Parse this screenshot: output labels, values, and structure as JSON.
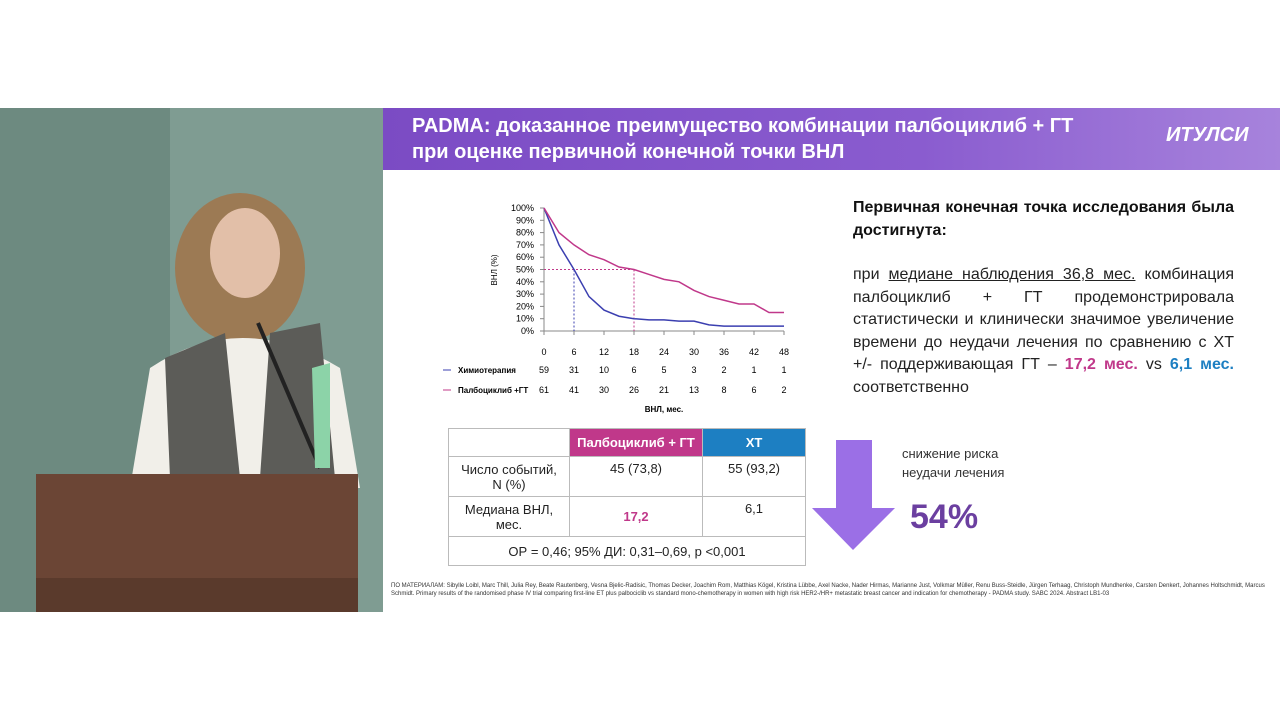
{
  "slide": {
    "title_lines": [
      "PADMA: доказанное преимущество комбинации палбоциклиб + ГТ",
      "при оценке первичной конечной точки ВНЛ"
    ],
    "logo": "ИТУЛСИ"
  },
  "chart_data": {
    "type": "line",
    "y_label": "ВНЛ (%)",
    "x_label": "ВНЛ, мес.",
    "x": [
      0,
      3,
      6,
      9,
      12,
      15,
      18,
      21,
      24,
      27,
      30,
      33,
      36,
      39,
      42,
      45,
      48
    ],
    "series": [
      {
        "name": "Химиотерапия",
        "color": "#3b3fb0",
        "values": [
          100,
          70,
          50,
          28,
          17,
          12,
          10,
          9,
          9,
          8,
          8,
          5,
          4,
          4,
          4,
          4,
          4
        ]
      },
      {
        "name": "Палбоциклиб +ГТ",
        "color": "#c0388a",
        "values": [
          100,
          80,
          70,
          62,
          58,
          52,
          50,
          46,
          42,
          40,
          33,
          28,
          25,
          22,
          22,
          15,
          15
        ]
      }
    ],
    "xlim": [
      0,
      48
    ],
    "ylim": [
      0,
      100
    ],
    "xticks": [
      0,
      6,
      12,
      18,
      24,
      30,
      36,
      42,
      48
    ],
    "yticks": [
      {
        "value": 0,
        "label": "0%"
      },
      {
        "value": 10,
        "label": "10%"
      },
      {
        "value": 20,
        "label": "20%"
      },
      {
        "value": 30,
        "label": "30%"
      },
      {
        "value": 40,
        "label": "40%"
      },
      {
        "value": 50,
        "label": "50%"
      },
      {
        "value": 60,
        "label": "60%"
      },
      {
        "value": 70,
        "label": "70%"
      },
      {
        "value": 80,
        "label": "80%"
      },
      {
        "value": 90,
        "label": "90%"
      },
      {
        "value": 100,
        "label": "100%"
      }
    ],
    "at_risk": [
      [
        59,
        31,
        10,
        6,
        5,
        3,
        2,
        1,
        1
      ],
      [
        61,
        41,
        30,
        26,
        21,
        13,
        8,
        6,
        2
      ]
    ]
  },
  "summary": {
    "heading": "Первичная конечная точка исследования была достигнута:",
    "parts": [
      "при ",
      "медиане наблюдения 36,8 мес.",
      " комбинация палбоциклиб + ГТ продемонстрировала статистически и клинически значимое увеличение времени до неудачи лечения по сравнению с ХТ +/- поддерживающая ГТ – ",
      "17,2 мес.",
      " vs ",
      "6,1 мес.",
      " соответственно"
    ]
  },
  "table": {
    "header": [
      "Палбоциклиб + ГТ",
      "ХТ"
    ],
    "rows": [
      [
        "Число событий, N (%)",
        "45 (73,8)",
        "55 (93,2)"
      ],
      [
        "Медиана ВНЛ, мес.",
        "17,2",
        "6,1"
      ]
    ],
    "footer": "ОР = 0,46; 95% ДИ: 0,31–0,69, p <0,001"
  },
  "risk_note": {
    "lines": [
      "снижение риска",
      "неудачи лечения"
    ],
    "value": "54%"
  },
  "footnote": "ПО МАТЕРИАЛАМ: Sibylle Loibl, Marc Thill, Julia Rey, Beate Rautenberg, Vesna Bjelic-Radisic, Thomas Decker, Joachim Rom, Matthias Kögel, Kristina Lübbe, Axel Nacke, Nader Hirmas, Marianne Just, Volkmar Müller, Renu Buss-Steidle, Jürgen Terhaag, Christoph Mundhenke, Carsten Denkert, Johannes Holtschmidt, Marcus Schmidt. Primary results of the randomised phase IV trial comparing first-line ET plus palbociclib vs standard mono-chemotherapy in women with high risk HER2-/HR+ metastatic breast cancer and indication for chemotherapy - PADMA study. SABC 2024. Abstract LB1-03"
}
